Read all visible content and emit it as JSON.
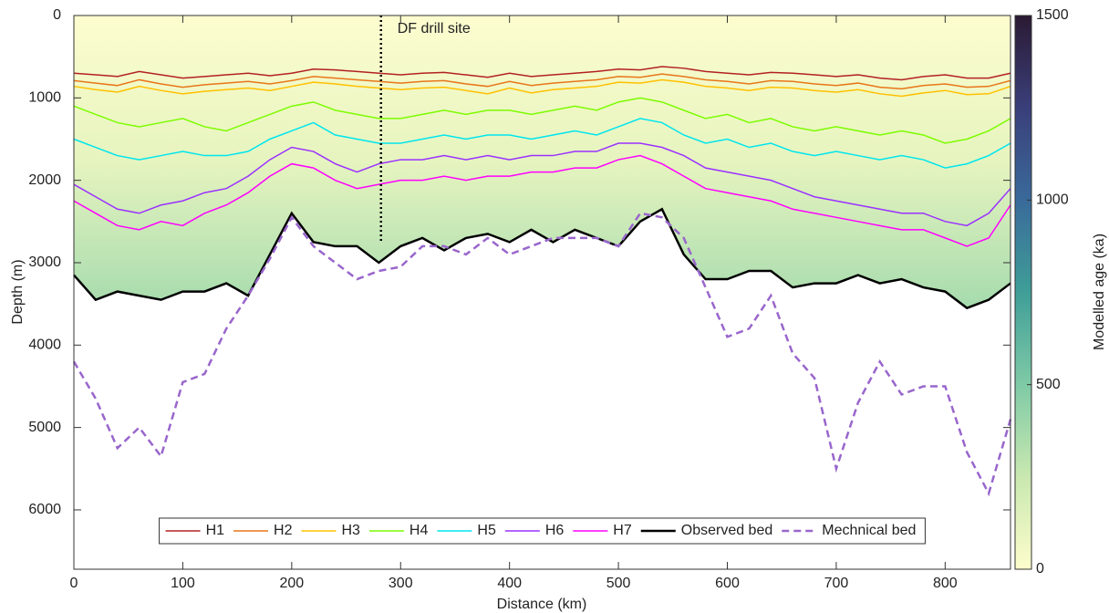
{
  "chart_data": {
    "type": "line",
    "x_label": "Distance (km)",
    "y_label": "Depth (m)",
    "y_reversed": true,
    "grid": false,
    "xlim": [
      0,
      860
    ],
    "ylim": [
      0,
      6720
    ],
    "xticks": [
      0,
      100,
      200,
      300,
      400,
      500,
      600,
      700,
      800
    ],
    "yticks": [
      0,
      1000,
      2000,
      3000,
      4000,
      5000,
      6000
    ],
    "x": [
      0,
      20,
      40,
      60,
      80,
      100,
      120,
      140,
      160,
      180,
      200,
      220,
      240,
      260,
      280,
      300,
      320,
      340,
      360,
      380,
      400,
      420,
      440,
      460,
      480,
      500,
      520,
      540,
      560,
      580,
      600,
      620,
      640,
      660,
      680,
      700,
      720,
      740,
      760,
      780,
      800,
      820,
      840,
      860
    ],
    "series": [
      {
        "name": "H1",
        "color": "#b22222",
        "width": 1.5,
        "dash": false,
        "values": [
          700,
          720,
          740,
          680,
          720,
          760,
          740,
          720,
          700,
          730,
          700,
          650,
          660,
          680,
          700,
          720,
          700,
          690,
          720,
          750,
          700,
          740,
          720,
          700,
          680,
          650,
          660,
          620,
          640,
          680,
          700,
          720,
          690,
          700,
          720,
          740,
          720,
          760,
          780,
          740,
          720,
          760,
          760,
          700
        ]
      },
      {
        "name": "H2",
        "color": "#e8761a",
        "width": 1.5,
        "dash": false,
        "values": [
          790,
          820,
          850,
          780,
          830,
          870,
          840,
          820,
          800,
          830,
          790,
          740,
          760,
          780,
          800,
          820,
          800,
          790,
          830,
          860,
          800,
          850,
          820,
          800,
          780,
          740,
          750,
          710,
          740,
          780,
          800,
          830,
          790,
          800,
          830,
          850,
          820,
          870,
          890,
          850,
          830,
          870,
          860,
          790
        ]
      },
      {
        "name": "H3",
        "color": "#ffc000",
        "width": 1.5,
        "dash": false,
        "values": [
          860,
          900,
          930,
          860,
          910,
          950,
          920,
          900,
          880,
          910,
          860,
          810,
          830,
          860,
          880,
          900,
          880,
          870,
          910,
          950,
          880,
          940,
          900,
          880,
          860,
          810,
          820,
          780,
          810,
          860,
          880,
          910,
          870,
          880,
          910,
          930,
          900,
          950,
          980,
          940,
          910,
          960,
          950,
          860
        ]
      },
      {
        "name": "H4",
        "color": "#7cfc00",
        "width": 1.5,
        "dash": false,
        "values": [
          1100,
          1200,
          1300,
          1350,
          1300,
          1250,
          1350,
          1400,
          1300,
          1200,
          1100,
          1050,
          1150,
          1200,
          1250,
          1250,
          1200,
          1150,
          1200,
          1150,
          1150,
          1200,
          1150,
          1100,
          1150,
          1050,
          1000,
          1050,
          1150,
          1250,
          1200,
          1300,
          1250,
          1350,
          1400,
          1350,
          1400,
          1450,
          1400,
          1450,
          1550,
          1500,
          1400,
          1250
        ]
      },
      {
        "name": "H5",
        "color": "#00e5ee",
        "width": 1.5,
        "dash": false,
        "values": [
          1500,
          1600,
          1700,
          1750,
          1700,
          1650,
          1700,
          1700,
          1650,
          1500,
          1400,
          1300,
          1450,
          1500,
          1550,
          1550,
          1500,
          1450,
          1500,
          1450,
          1450,
          1500,
          1450,
          1400,
          1450,
          1350,
          1250,
          1300,
          1450,
          1550,
          1500,
          1600,
          1550,
          1650,
          1700,
          1650,
          1700,
          1750,
          1700,
          1750,
          1850,
          1800,
          1700,
          1550
        ]
      },
      {
        "name": "H6",
        "color": "#9b30ff",
        "width": 1.5,
        "dash": false,
        "values": [
          2050,
          2200,
          2350,
          2400,
          2300,
          2250,
          2150,
          2100,
          1950,
          1750,
          1600,
          1650,
          1800,
          1900,
          1800,
          1750,
          1750,
          1700,
          1750,
          1700,
          1750,
          1700,
          1700,
          1650,
          1650,
          1550,
          1550,
          1600,
          1700,
          1850,
          1900,
          1950,
          2000,
          2100,
          2200,
          2250,
          2300,
          2350,
          2400,
          2400,
          2500,
          2550,
          2400,
          2100
        ]
      },
      {
        "name": "H7",
        "color": "#ff00ff",
        "width": 1.5,
        "dash": false,
        "values": [
          2250,
          2400,
          2550,
          2600,
          2500,
          2550,
          2400,
          2300,
          2150,
          1950,
          1800,
          1850,
          2000,
          2100,
          2050,
          2000,
          2000,
          1950,
          2000,
          1950,
          1950,
          1900,
          1900,
          1850,
          1850,
          1750,
          1700,
          1800,
          1950,
          2100,
          2150,
          2200,
          2250,
          2350,
          2400,
          2450,
          2500,
          2550,
          2600,
          2600,
          2700,
          2800,
          2700,
          2300
        ]
      },
      {
        "name": "Observed bed",
        "color": "#000000",
        "width": 2.5,
        "dash": false,
        "values": [
          3150,
          3450,
          3350,
          3400,
          3450,
          3350,
          3350,
          3250,
          3400,
          2900,
          2400,
          2750,
          2800,
          2800,
          3000,
          2800,
          2700,
          2850,
          2700,
          2650,
          2750,
          2600,
          2750,
          2600,
          2700,
          2800,
          2500,
          2350,
          2900,
          3200,
          3200,
          3100,
          3100,
          3300,
          3250,
          3250,
          3150,
          3250,
          3200,
          3300,
          3350,
          3550,
          3450,
          3250
        ]
      },
      {
        "name": "Mechnical bed",
        "color": "#9966cc",
        "width": 2.5,
        "dash": true,
        "values": [
          4200,
          4650,
          5250,
          5000,
          5350,
          4450,
          4350,
          3800,
          3400,
          2950,
          2450,
          2800,
          3000,
          3200,
          3100,
          3050,
          2800,
          2800,
          2900,
          2700,
          2900,
          2800,
          2700,
          2700,
          2700,
          2800,
          2400,
          2450,
          2700,
          3300,
          3900,
          3800,
          3400,
          4100,
          4400,
          5500,
          4700,
          4200,
          4600,
          4500,
          4500,
          5300,
          5800,
          4900
        ]
      }
    ],
    "age_field": {
      "bed_series": 7,
      "colors": [
        "#fdfdcf",
        "#e6f4bf",
        "#a6dbae"
      ]
    },
    "drill_site": {
      "label": "DF drill site",
      "x": 282,
      "depth": [
        0,
        2750
      ]
    },
    "colorbar": {
      "label": "Modelled age (ka)",
      "lim": [
        0,
        1500
      ],
      "ticks": [
        0,
        500,
        1000,
        1500
      ],
      "colormap": [
        "#fdfdcc",
        "#c9e8b0",
        "#7fcaa6",
        "#3f9e98",
        "#3a6a9a",
        "#3a3f7a",
        "#2b1a33"
      ]
    },
    "legend": "bottom"
  }
}
